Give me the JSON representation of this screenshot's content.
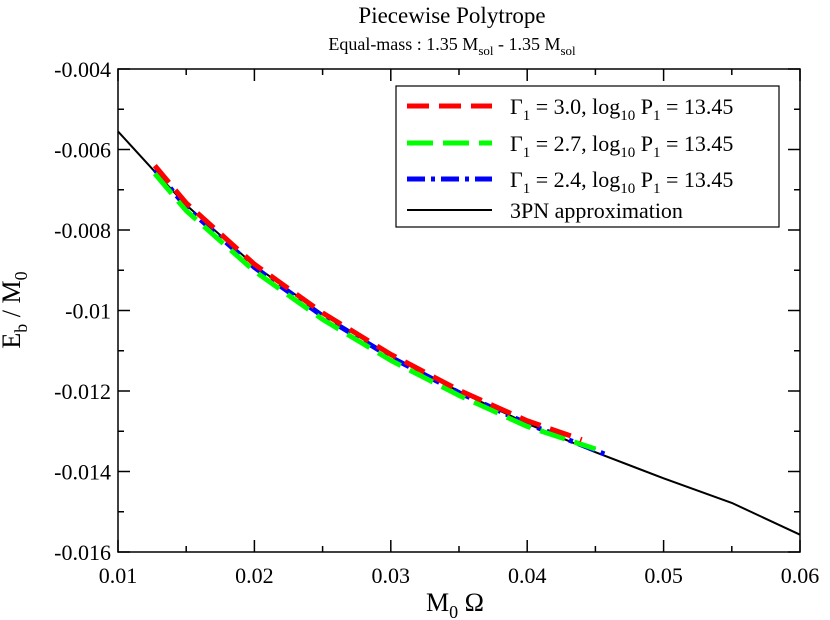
{
  "chart_data": {
    "type": "line",
    "title": "Piecewise Polytrope",
    "subtitle": {
      "prefix": "Equal-mass : 1.35 M",
      "sub1": "sol",
      "middle": " - 1.35 M",
      "sub2": "sol"
    },
    "xlabel": {
      "main": "M",
      "sub": "0",
      "rest": " Ω"
    },
    "ylabel": {
      "main": "E",
      "sub": "b",
      "rest": " / M",
      "sub2": "0"
    },
    "xlim": [
      0.01,
      0.06
    ],
    "ylim": [
      -0.016,
      -0.004
    ],
    "x_ticks": [
      0.01,
      0.02,
      0.03,
      0.04,
      0.05,
      0.06
    ],
    "x_tick_labels": [
      "0.01",
      "0.02",
      "0.03",
      "0.04",
      "0.05",
      "0.06"
    ],
    "y_ticks": [
      -0.016,
      -0.014,
      -0.012,
      -0.01,
      -0.008,
      -0.006,
      -0.004
    ],
    "y_tick_labels": [
      "-0.016",
      "-0.014",
      "-0.012",
      "-0.01",
      "-0.008",
      "-0.006",
      "-0.004"
    ],
    "grid": false,
    "legend_position": "top-right",
    "series": [
      {
        "name": "Γ1 = 3.0, log10 P1 = 13.45",
        "legend": {
          "gamma": "Γ",
          "gsub": "1",
          "gval": " = 3.0,  log",
          "logsub": "10",
          "p": " P",
          "psub": "1",
          "pval": " = 13.45"
        },
        "color": "#ff0000",
        "dash": "long-dash",
        "x": [
          0.0127,
          0.015,
          0.02,
          0.025,
          0.03,
          0.035,
          0.04,
          0.044
        ],
        "y": [
          -0.0064,
          -0.00733,
          -0.00885,
          -0.01006,
          -0.01109,
          -0.01198,
          -0.01274,
          -0.01321
        ]
      },
      {
        "name": "Γ1 = 2.7, log10 P1 = 13.45",
        "legend": {
          "gamma": "Γ",
          "gsub": "1",
          "gval": " = 2.7,  log",
          "logsub": "10",
          "p": " P",
          "psub": "1",
          "pval": " = 13.45"
        },
        "color": "#00ff00",
        "dash": "long-dash",
        "x": [
          0.0127,
          0.015,
          0.02,
          0.025,
          0.03,
          0.035,
          0.04,
          0.045
        ],
        "y": [
          -0.0066,
          -0.00752,
          -0.00902,
          -0.01022,
          -0.01124,
          -0.01211,
          -0.01288,
          -0.01344
        ]
      },
      {
        "name": "Γ1 = 2.4, log10 P1 = 13.45",
        "legend": {
          "gamma": "Γ",
          "gsub": "1",
          "gval": " = 2.4,  log",
          "logsub": "10",
          "p": " P",
          "psub": "1",
          "pval": " = 13.45"
        },
        "color": "#0000ff",
        "dash": "dash-dot",
        "x": [
          0.0127,
          0.015,
          0.02,
          0.025,
          0.03,
          0.035,
          0.04,
          0.046
        ],
        "y": [
          -0.0065,
          -0.00743,
          -0.00893,
          -0.01014,
          -0.01116,
          -0.01204,
          -0.01281,
          -0.01361
        ]
      },
      {
        "name": "3PN approximation",
        "legend": {
          "text": "3PN approximation"
        },
        "color": "#000000",
        "dash": "solid",
        "x": [
          0.01,
          0.0127,
          0.015,
          0.02,
          0.025,
          0.03,
          0.035,
          0.04,
          0.045,
          0.05,
          0.055,
          0.06
        ],
        "y": [
          -0.00555,
          -0.00655,
          -0.00738,
          -0.00888,
          -0.01009,
          -0.01112,
          -0.01201,
          -0.01281,
          -0.01352,
          -0.01417,
          -0.01478,
          -0.01557
        ]
      }
    ]
  }
}
